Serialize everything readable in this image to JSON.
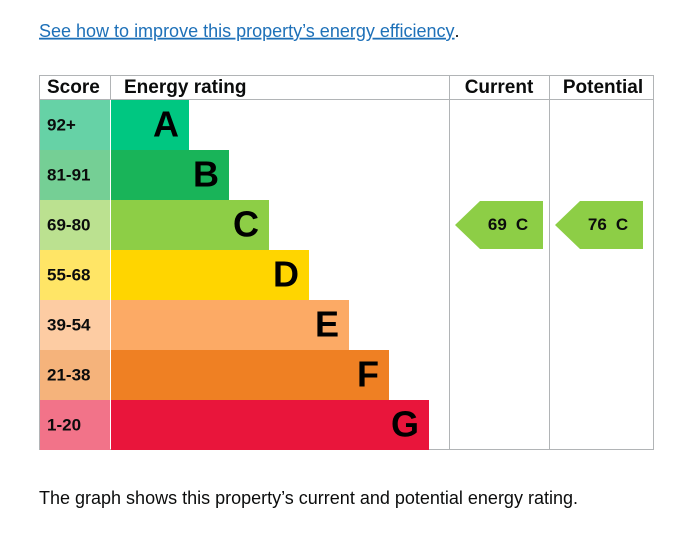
{
  "link": {
    "text": "See how to improve this property’s energy efficiency",
    "suffix": "."
  },
  "headers": {
    "score": "Score",
    "rating": "Energy rating",
    "current": "Current",
    "potential": "Potential"
  },
  "bands": [
    {
      "score": "92+",
      "rating": "A",
      "color": "#00c781",
      "tint": "#66d2a6"
    },
    {
      "score": "81-91",
      "rating": "B",
      "color": "#19b459",
      "tint": "#75cf95"
    },
    {
      "score": "69-80",
      "rating": "C",
      "color": "#8dce46",
      "tint": "#bbe190"
    },
    {
      "score": "55-68",
      "rating": "D",
      "color": "#ffd500",
      "tint": "#ffe566"
    },
    {
      "score": "39-54",
      "rating": "E",
      "color": "#fcaa65",
      "tint": "#fdcca3"
    },
    {
      "score": "21-38",
      "rating": "F",
      "color": "#ef8023",
      "tint": "#f5b37b"
    },
    {
      "score": "1-20",
      "rating": "G",
      "color": "#e9153b",
      "tint": "#f27389"
    }
  ],
  "current": {
    "value": 69,
    "rating": "C"
  },
  "potential": {
    "value": 76,
    "rating": "C"
  },
  "footer": "The graph shows this property’s current and potential energy rating."
}
